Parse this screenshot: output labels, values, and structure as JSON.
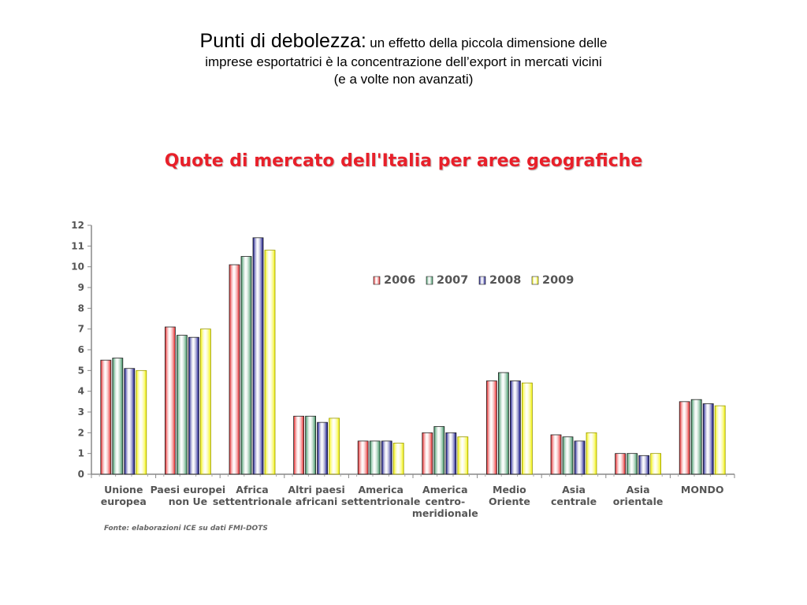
{
  "slide": {
    "title_lead": "Punti di debolezza:",
    "title_line1": "un effetto della piccola dimensione delle",
    "title_line2": "imprese esportatrici è la  concentrazione dell’export in mercati vicini",
    "title_line3": "(e a volte non avanzati)"
  },
  "chart_data": {
    "type": "bar",
    "title": "Quote di mercato dell'Italia per aree geografiche",
    "xlabel": "",
    "ylabel": "",
    "ylim": [
      0,
      12
    ],
    "yticks": [
      "0",
      "1",
      "2",
      "3",
      "4",
      "5",
      "6",
      "7",
      "8",
      "9",
      "10",
      "11",
      "12"
    ],
    "grid": false,
    "legend_position": "top-right",
    "categories": [
      [
        "Unione",
        "europea"
      ],
      [
        "Paesi europei",
        "non Ue"
      ],
      [
        "Africa",
        "settentrionale"
      ],
      [
        "Altri paesi",
        "africani"
      ],
      [
        "America",
        "settentrionale"
      ],
      [
        "America",
        "centro-",
        "meridionale"
      ],
      [
        "Medio",
        "Oriente"
      ],
      [
        "Asia",
        "centrale"
      ],
      [
        "Asia",
        "orientale"
      ],
      [
        "MONDO"
      ]
    ],
    "series": [
      {
        "name": "2006",
        "color": "#e41a1c",
        "values": [
          5.5,
          7.1,
          10.1,
          2.8,
          1.6,
          2.0,
          4.5,
          1.9,
          1.0,
          3.5
        ]
      },
      {
        "name": "2007",
        "color": "#2e8b57",
        "values": [
          5.6,
          6.7,
          10.5,
          2.8,
          1.6,
          2.3,
          4.9,
          1.8,
          1.0,
          3.6
        ]
      },
      {
        "name": "2008",
        "color": "#000080",
        "values": [
          5.1,
          6.6,
          11.4,
          2.5,
          1.6,
          2.0,
          4.5,
          1.6,
          0.9,
          3.4
        ]
      },
      {
        "name": "2009",
        "color": "#f2f200",
        "values": [
          5.0,
          7.0,
          10.8,
          2.7,
          1.5,
          1.8,
          4.4,
          2.0,
          1.0,
          3.3
        ]
      }
    ],
    "source": "Fonte: elaborazioni ICE su dati FMI-DOTS"
  }
}
